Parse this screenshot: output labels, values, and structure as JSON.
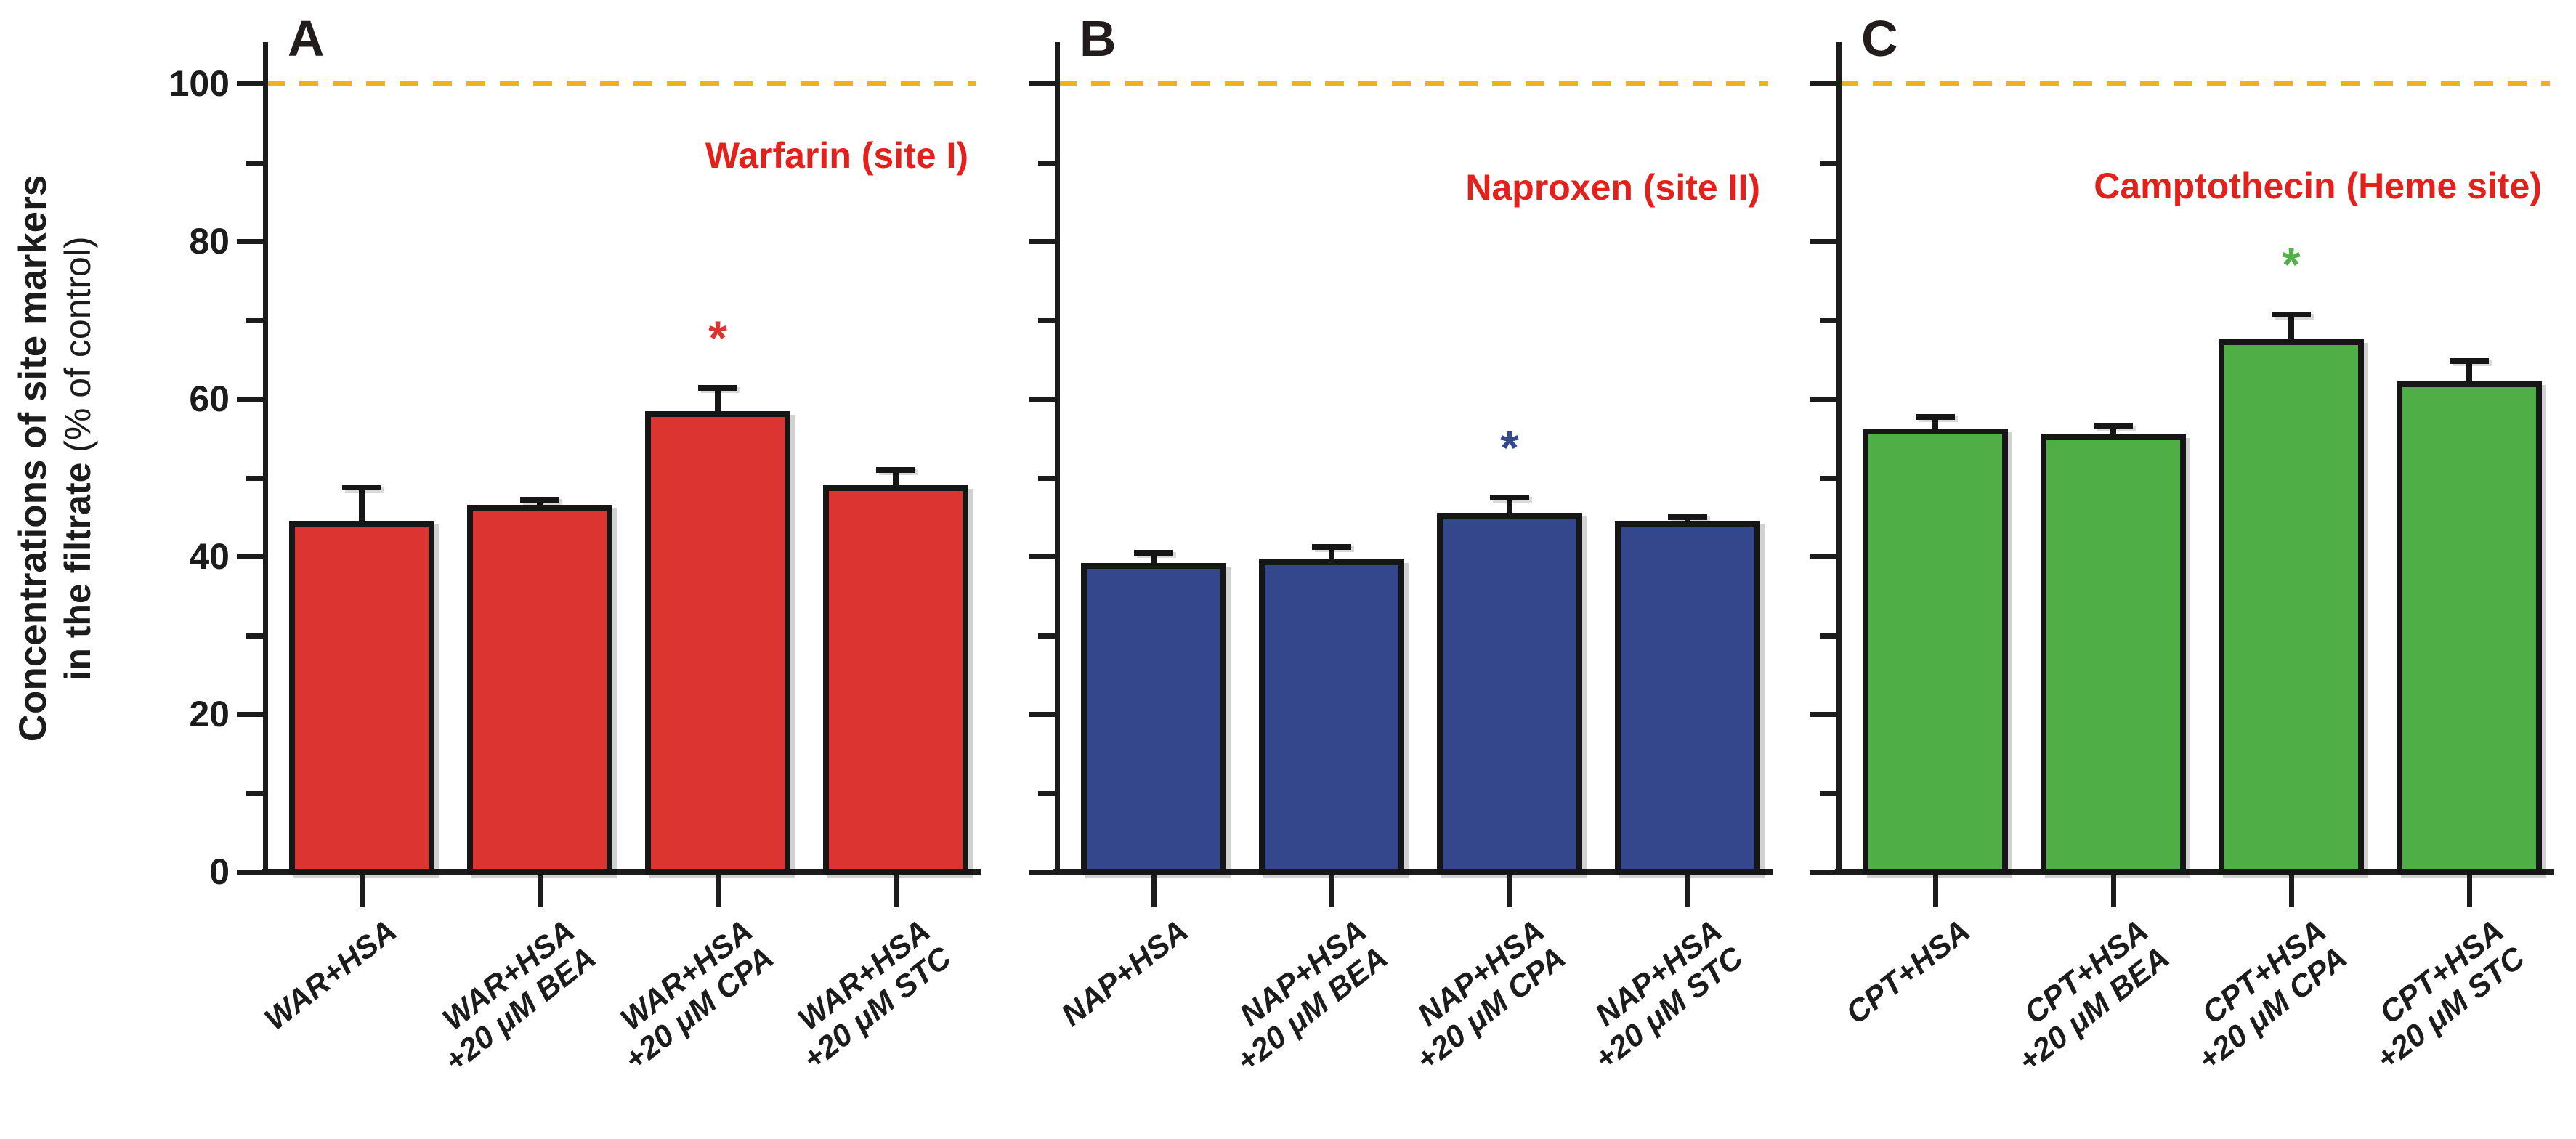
{
  "figure": {
    "y_axis": {
      "label_line1": "Concentrations of site markers",
      "label_line2_bold": "in the filtrate",
      "label_line2_regular": " (% of control)",
      "ticks": [
        "0",
        "20",
        "40",
        "60",
        "80",
        "100"
      ],
      "tick_values": [
        0,
        20,
        40,
        60,
        80,
        100
      ],
      "minor_tick_values": [
        10,
        30,
        50,
        70,
        90
      ]
    },
    "reference_line": {
      "value": 100,
      "color": "#efb11c",
      "style": "dashed"
    },
    "significance_marker": "*",
    "colors": {
      "red_bar": "#dc3430",
      "blue_bar": "#35478c",
      "green_bar": "#4fae45",
      "title_red": "#e2211c",
      "axis_black": "#1c1c1c",
      "reference_gold": "#efb11c"
    }
  },
  "chart_data": [
    {
      "type": "bar",
      "panel_label": "A",
      "title": "Warfarin (site I)",
      "categories": [
        [
          "WAR+HSA"
        ],
        [
          "WAR+HSA",
          "+20 μM BEA"
        ],
        [
          "WAR+HSA",
          "+20 μM CPA"
        ],
        [
          "WAR+HSA",
          "+20 μM STC"
        ]
      ],
      "values": [
        44.5,
        46.5,
        58.4,
        49.0
      ],
      "errors": [
        4.3,
        0.7,
        3.0,
        2.0
      ],
      "significant": [
        false,
        false,
        true,
        false
      ],
      "bar_color": "#dc3430",
      "star_color": "#dc3430",
      "ylabel": "Concentrations of site markers in the filtrate (% of control)",
      "ylim": [
        0,
        105
      ]
    },
    {
      "type": "bar",
      "panel_label": "B",
      "title": "Naproxen (site II)",
      "categories": [
        [
          "NAP+HSA"
        ],
        [
          "NAP+HSA",
          "+20 μM BEA"
        ],
        [
          "NAP+HSA",
          "+20 μM CPA"
        ],
        [
          "NAP+HSA",
          "+20 μM STC"
        ]
      ],
      "values": [
        39.2,
        39.6,
        45.5,
        44.5
      ],
      "errors": [
        1.3,
        1.6,
        2.0,
        0.5
      ],
      "significant": [
        false,
        false,
        true,
        false
      ],
      "bar_color": "#35478c",
      "star_color": "#35478c",
      "ylabel": "Concentrations of site markers in the filtrate (% of control)",
      "ylim": [
        0,
        105
      ]
    },
    {
      "type": "bar",
      "panel_label": "C",
      "title": "Camptothecin (Heme site)",
      "categories": [
        [
          "CPT+HSA"
        ],
        [
          "CPT+HSA",
          "+20 μM BEA"
        ],
        [
          "CPT+HSA",
          "+20 μM CPA"
        ],
        [
          "CPT+HSA",
          "+20 μM STC"
        ]
      ],
      "values": [
        56.2,
        55.5,
        67.6,
        62.2
      ],
      "errors": [
        1.5,
        1.0,
        3.1,
        2.6
      ],
      "significant": [
        false,
        false,
        true,
        false
      ],
      "bar_color": "#4fae45",
      "star_color": "#52b146",
      "ylabel": "Concentrations of site markers in the filtrate (% of control)",
      "ylim": [
        0,
        105
      ]
    }
  ]
}
